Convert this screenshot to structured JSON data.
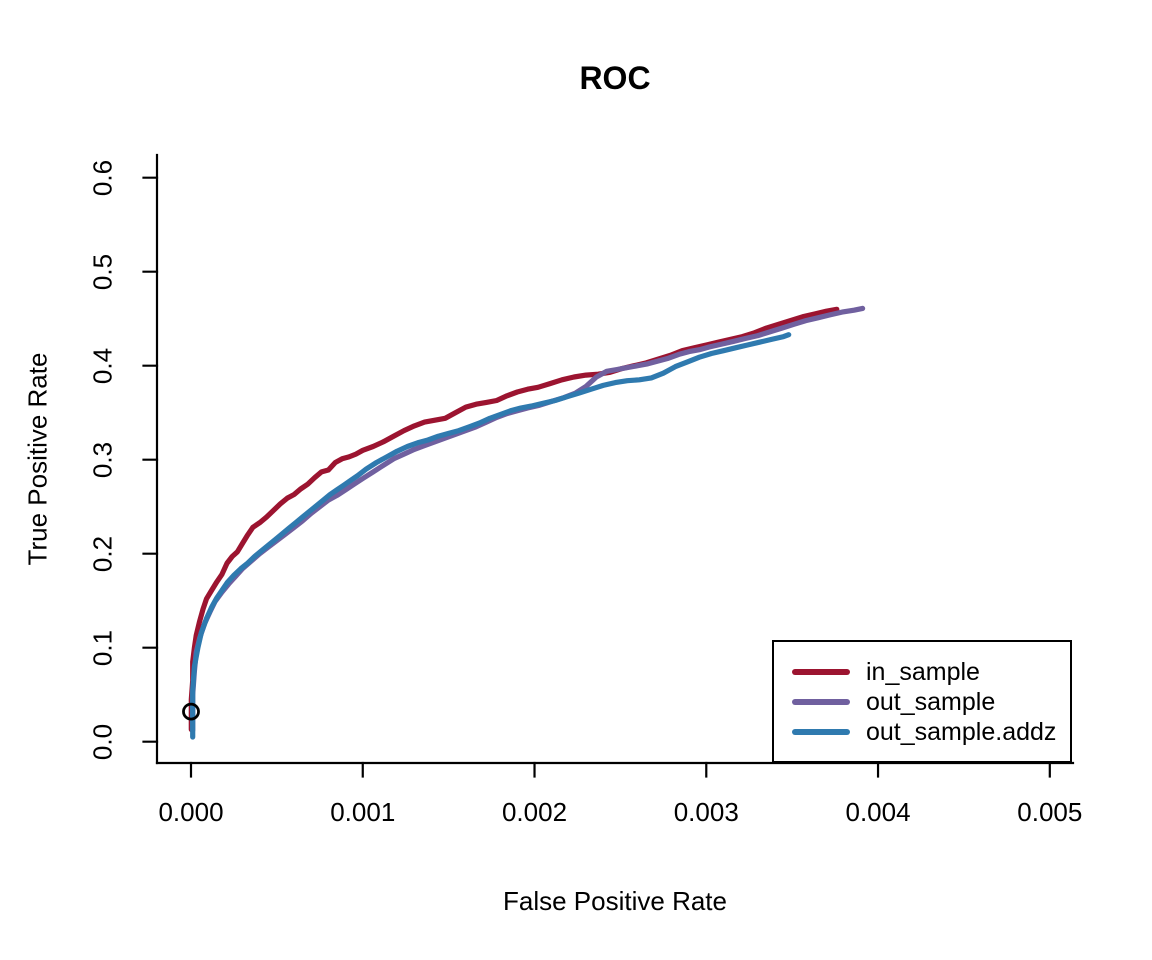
{
  "chart_data": {
    "type": "line",
    "title": "ROC",
    "xlabel": "False Positive Rate",
    "ylabel": "True Positive Rate",
    "xlim": [
      0,
      0.005
    ],
    "ylim": [
      0,
      0.6
    ],
    "grid": false,
    "axis_style": "L-shaped (left and bottom only)",
    "axis_color": "#000000",
    "background_color": "#ffffff",
    "legend_position": "bottom-right",
    "x_ticks": {
      "values": [
        0,
        0.001,
        0.002,
        0.003,
        0.004,
        0.005
      ],
      "labels": [
        "0.000",
        "0.001",
        "0.002",
        "0.003",
        "0.004",
        "0.005"
      ]
    },
    "y_ticks": {
      "values": [
        0.0,
        0.1,
        0.2,
        0.3,
        0.4,
        0.5,
        0.6
      ],
      "labels": [
        "0.0",
        "0.1",
        "0.2",
        "0.3",
        "0.4",
        "0.5",
        "0.6"
      ]
    },
    "marker": {
      "shape": "open-circle",
      "x": 0.0,
      "y": 0.032,
      "color": "#000000"
    },
    "series": [
      {
        "name": "in_sample",
        "color": "#9C1430",
        "points": [
          [
            2e-06,
            0.013
          ],
          [
            2e-06,
            0.045
          ],
          [
            1e-05,
            0.065
          ],
          [
            1e-05,
            0.085
          ],
          [
            2e-05,
            0.1
          ],
          [
            3e-05,
            0.113
          ],
          [
            5e-05,
            0.128
          ],
          [
            7e-05,
            0.141
          ],
          [
            9e-05,
            0.152
          ],
          [
            0.00012,
            0.161
          ],
          [
            0.00015,
            0.17
          ],
          [
            0.00018,
            0.178
          ],
          [
            0.00021,
            0.19
          ],
          [
            0.00024,
            0.197
          ],
          [
            0.00027,
            0.202
          ],
          [
            0.0003,
            0.211
          ],
          [
            0.00033,
            0.22
          ],
          [
            0.00036,
            0.228
          ],
          [
            0.0004,
            0.233
          ],
          [
            0.00044,
            0.239
          ],
          [
            0.00048,
            0.246
          ],
          [
            0.00052,
            0.253
          ],
          [
            0.00056,
            0.259
          ],
          [
            0.0006,
            0.263
          ],
          [
            0.00064,
            0.269
          ],
          [
            0.00068,
            0.274
          ],
          [
            0.00072,
            0.281
          ],
          [
            0.00076,
            0.287
          ],
          [
            0.0008,
            0.289
          ],
          [
            0.00084,
            0.297
          ],
          [
            0.00088,
            0.301
          ],
          [
            0.00092,
            0.303
          ],
          [
            0.00096,
            0.306
          ],
          [
            0.001,
            0.31
          ],
          [
            0.00106,
            0.314
          ],
          [
            0.00112,
            0.319
          ],
          [
            0.00118,
            0.325
          ],
          [
            0.00124,
            0.331
          ],
          [
            0.0013,
            0.336
          ],
          [
            0.00136,
            0.34
          ],
          [
            0.00142,
            0.342
          ],
          [
            0.00148,
            0.344
          ],
          [
            0.00154,
            0.35
          ],
          [
            0.0016,
            0.356
          ],
          [
            0.00166,
            0.359
          ],
          [
            0.00172,
            0.361
          ],
          [
            0.00178,
            0.363
          ],
          [
            0.00184,
            0.368
          ],
          [
            0.0019,
            0.372
          ],
          [
            0.00196,
            0.375
          ],
          [
            0.00202,
            0.377
          ],
          [
            0.00209,
            0.381
          ],
          [
            0.00216,
            0.385
          ],
          [
            0.00223,
            0.388
          ],
          [
            0.0023,
            0.39
          ],
          [
            0.00237,
            0.391
          ],
          [
            0.00244,
            0.393
          ],
          [
            0.00251,
            0.397
          ],
          [
            0.00258,
            0.4
          ],
          [
            0.00265,
            0.403
          ],
          [
            0.00272,
            0.407
          ],
          [
            0.00279,
            0.411
          ],
          [
            0.00286,
            0.416
          ],
          [
            0.00293,
            0.419
          ],
          [
            0.003,
            0.422
          ],
          [
            0.00307,
            0.425
          ],
          [
            0.00314,
            0.428
          ],
          [
            0.00321,
            0.431
          ],
          [
            0.00328,
            0.435
          ],
          [
            0.00335,
            0.44
          ],
          [
            0.00342,
            0.444
          ],
          [
            0.00349,
            0.448
          ],
          [
            0.00356,
            0.452
          ],
          [
            0.00363,
            0.455
          ],
          [
            0.0037,
            0.458
          ],
          [
            0.00376,
            0.46
          ]
        ]
      },
      {
        "name": "out_sample",
        "color": "#70609F",
        "points": [
          [
            1e-05,
            0.012
          ],
          [
            1e-05,
            0.05
          ],
          [
            2e-05,
            0.075
          ],
          [
            3e-05,
            0.095
          ],
          [
            5e-05,
            0.11
          ],
          [
            8e-05,
            0.126
          ],
          [
            0.00011,
            0.138
          ],
          [
            0.00014,
            0.149
          ],
          [
            0.00018,
            0.159
          ],
          [
            0.00022,
            0.168
          ],
          [
            0.00026,
            0.176
          ],
          [
            0.0003,
            0.184
          ],
          [
            0.00035,
            0.192
          ],
          [
            0.0004,
            0.2
          ],
          [
            0.00045,
            0.207
          ],
          [
            0.0005,
            0.214
          ],
          [
            0.00055,
            0.221
          ],
          [
            0.0006,
            0.228
          ],
          [
            0.00065,
            0.235
          ],
          [
            0.0007,
            0.243
          ],
          [
            0.00075,
            0.25
          ],
          [
            0.0008,
            0.257
          ],
          [
            0.00085,
            0.262
          ],
          [
            0.0009,
            0.268
          ],
          [
            0.00095,
            0.274
          ],
          [
            0.001,
            0.28
          ],
          [
            0.00106,
            0.287
          ],
          [
            0.00112,
            0.294
          ],
          [
            0.00118,
            0.301
          ],
          [
            0.00124,
            0.306
          ],
          [
            0.0013,
            0.311
          ],
          [
            0.00136,
            0.315
          ],
          [
            0.00142,
            0.319
          ],
          [
            0.00148,
            0.323
          ],
          [
            0.00154,
            0.327
          ],
          [
            0.0016,
            0.331
          ],
          [
            0.00166,
            0.335
          ],
          [
            0.00172,
            0.34
          ],
          [
            0.00178,
            0.345
          ],
          [
            0.00184,
            0.349
          ],
          [
            0.0019,
            0.352
          ],
          [
            0.00196,
            0.355
          ],
          [
            0.00203,
            0.358
          ],
          [
            0.0021,
            0.362
          ],
          [
            0.00217,
            0.366
          ],
          [
            0.00224,
            0.371
          ],
          [
            0.0023,
            0.378
          ],
          [
            0.00236,
            0.388
          ],
          [
            0.00242,
            0.394
          ],
          [
            0.00248,
            0.396
          ],
          [
            0.00254,
            0.398
          ],
          [
            0.0026,
            0.4
          ],
          [
            0.00266,
            0.402
          ],
          [
            0.00272,
            0.405
          ],
          [
            0.00278,
            0.408
          ],
          [
            0.00284,
            0.412
          ],
          [
            0.0029,
            0.415
          ],
          [
            0.00296,
            0.417
          ],
          [
            0.00302,
            0.42
          ],
          [
            0.00309,
            0.423
          ],
          [
            0.00316,
            0.426
          ],
          [
            0.00323,
            0.429
          ],
          [
            0.0033,
            0.432
          ],
          [
            0.00337,
            0.436
          ],
          [
            0.00344,
            0.44
          ],
          [
            0.00351,
            0.444
          ],
          [
            0.00358,
            0.448
          ],
          [
            0.00365,
            0.451
          ],
          [
            0.00372,
            0.454
          ],
          [
            0.00379,
            0.457
          ],
          [
            0.00386,
            0.459
          ],
          [
            0.00391,
            0.461
          ]
        ]
      },
      {
        "name": "out_sample.addz",
        "color": "#2F7AAF",
        "points": [
          [
            1e-05,
            0.005
          ],
          [
            1e-05,
            0.055
          ],
          [
            2e-05,
            0.08
          ],
          [
            4e-05,
            0.1
          ],
          [
            6e-05,
            0.116
          ],
          [
            9e-05,
            0.131
          ],
          [
            0.00012,
            0.143
          ],
          [
            0.00015,
            0.153
          ],
          [
            0.00018,
            0.161
          ],
          [
            0.00021,
            0.169
          ],
          [
            0.00025,
            0.177
          ],
          [
            0.00029,
            0.184
          ],
          [
            0.00033,
            0.19
          ],
          [
            0.00037,
            0.197
          ],
          [
            0.00041,
            0.203
          ],
          [
            0.00045,
            0.209
          ],
          [
            0.00049,
            0.215
          ],
          [
            0.00053,
            0.221
          ],
          [
            0.00057,
            0.227
          ],
          [
            0.00061,
            0.233
          ],
          [
            0.00065,
            0.239
          ],
          [
            0.00069,
            0.245
          ],
          [
            0.00073,
            0.251
          ],
          [
            0.00077,
            0.257
          ],
          [
            0.00081,
            0.263
          ],
          [
            0.00085,
            0.268
          ],
          [
            0.00089,
            0.273
          ],
          [
            0.00093,
            0.278
          ],
          [
            0.00097,
            0.283
          ],
          [
            0.00102,
            0.29
          ],
          [
            0.00108,
            0.297
          ],
          [
            0.00114,
            0.303
          ],
          [
            0.0012,
            0.309
          ],
          [
            0.00126,
            0.314
          ],
          [
            0.00132,
            0.318
          ],
          [
            0.00138,
            0.321
          ],
          [
            0.00144,
            0.325
          ],
          [
            0.0015,
            0.328
          ],
          [
            0.00156,
            0.331
          ],
          [
            0.00162,
            0.335
          ],
          [
            0.00168,
            0.339
          ],
          [
            0.00174,
            0.344
          ],
          [
            0.0018,
            0.348
          ],
          [
            0.00186,
            0.352
          ],
          [
            0.00192,
            0.355
          ],
          [
            0.00198,
            0.357
          ],
          [
            0.00205,
            0.36
          ],
          [
            0.00212,
            0.363
          ],
          [
            0.00219,
            0.367
          ],
          [
            0.00226,
            0.371
          ],
          [
            0.00233,
            0.375
          ],
          [
            0.0024,
            0.379
          ],
          [
            0.00247,
            0.382
          ],
          [
            0.00254,
            0.384
          ],
          [
            0.00261,
            0.385
          ],
          [
            0.00268,
            0.387
          ],
          [
            0.00275,
            0.392
          ],
          [
            0.00282,
            0.399
          ],
          [
            0.00289,
            0.404
          ],
          [
            0.00296,
            0.409
          ],
          [
            0.00303,
            0.413
          ],
          [
            0.0031,
            0.416
          ],
          [
            0.00317,
            0.419
          ],
          [
            0.00324,
            0.422
          ],
          [
            0.00331,
            0.425
          ],
          [
            0.00338,
            0.428
          ],
          [
            0.00345,
            0.431
          ],
          [
            0.00348,
            0.433
          ]
        ]
      }
    ]
  }
}
